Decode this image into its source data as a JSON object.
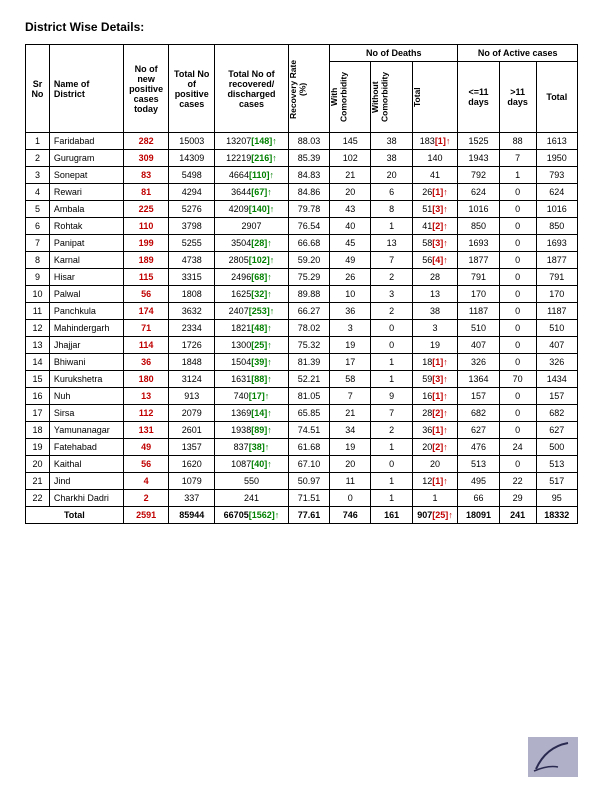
{
  "title": "District Wise Details:",
  "headers": {
    "sr": "Sr No",
    "name": "Name of District",
    "new": "No of new positive cases today",
    "totalpos": "Total No of positive cases",
    "recovered": "Total No of recovered/ discharged cases",
    "recrate": "Recovery Rate (%)",
    "deaths": "No of Deaths",
    "withco": "With Comorbidity",
    "withoutco": "Without Comorbidity",
    "dtotal": "Total",
    "active": "No of Active cases",
    "le11": "<=11 days",
    "gt11": ">11 days",
    "atotal": "Total"
  },
  "rows": [
    {
      "sr": "1",
      "name": "Faridabad",
      "new": "282",
      "totalpos": "15003",
      "rec": "13207",
      "recdelta": "[148]",
      "rate": "88.03",
      "withco": "145",
      "withoutco": "38",
      "dtot": "183",
      "dnote": "[1]",
      "darrow": true,
      "le11": "1525",
      "gt11": "88",
      "atot": "1613"
    },
    {
      "sr": "2",
      "name": "Gurugram",
      "new": "309",
      "totalpos": "14309",
      "rec": "12219",
      "recdelta": "[216]",
      "rate": "85.39",
      "withco": "102",
      "withoutco": "38",
      "dtot": "140",
      "dnote": "",
      "darrow": false,
      "le11": "1943",
      "gt11": "7",
      "atot": "1950"
    },
    {
      "sr": "3",
      "name": "Sonepat",
      "new": "83",
      "totalpos": "5498",
      "rec": "4664",
      "recdelta": "[110]",
      "rate": "84.83",
      "withco": "21",
      "withoutco": "20",
      "dtot": "41",
      "dnote": "",
      "darrow": false,
      "le11": "792",
      "gt11": "1",
      "atot": "793"
    },
    {
      "sr": "4",
      "name": "Rewari",
      "new": "81",
      "totalpos": "4294",
      "rec": "3644",
      "recdelta": "[67]",
      "rate": "84.86",
      "withco": "20",
      "withoutco": "6",
      "dtot": "26",
      "dnote": "[1]",
      "darrow": true,
      "le11": "624",
      "gt11": "0",
      "atot": "624"
    },
    {
      "sr": "5",
      "name": "Ambala",
      "new": "225",
      "totalpos": "5276",
      "rec": "4209",
      "recdelta": "[140]",
      "rate": "79.78",
      "withco": "43",
      "withoutco": "8",
      "dtot": "51",
      "dnote": "[3]",
      "darrow": true,
      "le11": "1016",
      "gt11": "0",
      "atot": "1016"
    },
    {
      "sr": "6",
      "name": "Rohtak",
      "new": "110",
      "totalpos": "3798",
      "rec": "2907",
      "recdelta": "",
      "rate": "76.54",
      "withco": "40",
      "withoutco": "1",
      "dtot": "41",
      "dnote": "[2]",
      "darrow": true,
      "le11": "850",
      "gt11": "0",
      "atot": "850"
    },
    {
      "sr": "7",
      "name": "Panipat",
      "new": "199",
      "totalpos": "5255",
      "rec": "3504",
      "recdelta": "[28]",
      "rate": "66.68",
      "withco": "45",
      "withoutco": "13",
      "dtot": "58",
      "dnote": "[3]",
      "darrow": true,
      "le11": "1693",
      "gt11": "0",
      "atot": "1693"
    },
    {
      "sr": "8",
      "name": "Karnal",
      "new": "189",
      "totalpos": "4738",
      "rec": "2805",
      "recdelta": "[102]",
      "rate": "59.20",
      "withco": "49",
      "withoutco": "7",
      "dtot": "56",
      "dnote": "[4]",
      "darrow": true,
      "le11": "1877",
      "gt11": "0",
      "atot": "1877"
    },
    {
      "sr": "9",
      "name": "Hisar",
      "new": "115",
      "totalpos": "3315",
      "rec": "2496",
      "recdelta": "[68]",
      "rate": "75.29",
      "withco": "26",
      "withoutco": "2",
      "dtot": "28",
      "dnote": "",
      "darrow": false,
      "le11": "791",
      "gt11": "0",
      "atot": "791"
    },
    {
      "sr": "10",
      "name": "Palwal",
      "new": "56",
      "totalpos": "1808",
      "rec": "1625",
      "recdelta": "[32]",
      "rate": "89.88",
      "withco": "10",
      "withoutco": "3",
      "dtot": "13",
      "dnote": "",
      "darrow": false,
      "le11": "170",
      "gt11": "0",
      "atot": "170"
    },
    {
      "sr": "11",
      "name": "Panchkula",
      "new": "174",
      "totalpos": "3632",
      "rec": "2407",
      "recdelta": "[253]",
      "rate": "66.27",
      "withco": "36",
      "withoutco": "2",
      "dtot": "38",
      "dnote": "",
      "darrow": false,
      "le11": "1187",
      "gt11": "0",
      "atot": "1187"
    },
    {
      "sr": "12",
      "name": "Mahindergarh",
      "new": "71",
      "totalpos": "2334",
      "rec": "1821",
      "recdelta": "[48]",
      "rate": "78.02",
      "withco": "3",
      "withoutco": "0",
      "dtot": "3",
      "dnote": "",
      "darrow": false,
      "le11": "510",
      "gt11": "0",
      "atot": "510"
    },
    {
      "sr": "13",
      "name": "Jhajjar",
      "new": "114",
      "totalpos": "1726",
      "rec": "1300",
      "recdelta": "[25]",
      "rate": "75.32",
      "withco": "19",
      "withoutco": "0",
      "dtot": "19",
      "dnote": "",
      "darrow": false,
      "le11": "407",
      "gt11": "0",
      "atot": "407"
    },
    {
      "sr": "14",
      "name": "Bhiwani",
      "new": "36",
      "totalpos": "1848",
      "rec": "1504",
      "recdelta": "[39]",
      "rate": "81.39",
      "withco": "17",
      "withoutco": "1",
      "dtot": "18",
      "dnote": "[1]",
      "darrow": true,
      "le11": "326",
      "gt11": "0",
      "atot": "326"
    },
    {
      "sr": "15",
      "name": "Kurukshetra",
      "new": "180",
      "totalpos": "3124",
      "rec": "1631",
      "recdelta": "[88]",
      "rate": "52.21",
      "withco": "58",
      "withoutco": "1",
      "dtot": "59",
      "dnote": "[3]",
      "darrow": true,
      "le11": "1364",
      "gt11": "70",
      "atot": "1434"
    },
    {
      "sr": "16",
      "name": "Nuh",
      "new": "13",
      "totalpos": "913",
      "rec": "740",
      "recdelta": "[17]",
      "rate": "81.05",
      "withco": "7",
      "withoutco": "9",
      "dtot": "16",
      "dnote": "[1]",
      "darrow": true,
      "le11": "157",
      "gt11": "0",
      "atot": "157"
    },
    {
      "sr": "17",
      "name": "Sirsa",
      "new": "112",
      "totalpos": "2079",
      "rec": "1369",
      "recdelta": "[14]",
      "rate": "65.85",
      "withco": "21",
      "withoutco": "7",
      "dtot": "28",
      "dnote": "[2]",
      "darrow": true,
      "le11": "682",
      "gt11": "0",
      "atot": "682"
    },
    {
      "sr": "18",
      "name": "Yamunanagar",
      "new": "131",
      "totalpos": "2601",
      "rec": "1938",
      "recdelta": "[89]",
      "rate": "74.51",
      "withco": "34",
      "withoutco": "2",
      "dtot": "36",
      "dnote": "[1]",
      "darrow": true,
      "le11": "627",
      "gt11": "0",
      "atot": "627"
    },
    {
      "sr": "19",
      "name": "Fatehabad",
      "new": "49",
      "totalpos": "1357",
      "rec": "837",
      "recdelta": "[38]",
      "rate": "61.68",
      "withco": "19",
      "withoutco": "1",
      "dtot": "20",
      "dnote": "[2]",
      "darrow": true,
      "le11": "476",
      "gt11": "24",
      "atot": "500"
    },
    {
      "sr": "20",
      "name": "Kaithal",
      "new": "56",
      "totalpos": "1620",
      "rec": "1087",
      "recdelta": "[40]",
      "rate": "67.10",
      "withco": "20",
      "withoutco": "0",
      "dtot": "20",
      "dnote": "",
      "darrow": false,
      "le11": "513",
      "gt11": "0",
      "atot": "513"
    },
    {
      "sr": "21",
      "name": "Jind",
      "new": "4",
      "totalpos": "1079",
      "rec": "550",
      "recdelta": "",
      "rate": "50.97",
      "withco": "11",
      "withoutco": "1",
      "dtot": "12",
      "dnote": "[1]",
      "darrow": true,
      "le11": "495",
      "gt11": "22",
      "atot": "517"
    },
    {
      "sr": "22",
      "name": "Charkhi Dadri",
      "new": "2",
      "totalpos": "337",
      "rec": "241",
      "recdelta": "",
      "rate": "71.51",
      "withco": "0",
      "withoutco": "1",
      "dtot": "1",
      "dnote": "",
      "darrow": false,
      "le11": "66",
      "gt11": "29",
      "atot": "95"
    }
  ],
  "total": {
    "label": "Total",
    "new": "2591",
    "totalpos": "85944",
    "rec": "66705",
    "recdelta": "[1562]",
    "rate": "77.61",
    "withco": "746",
    "withoutco": "161",
    "dtot": "907",
    "dnote": "[25]",
    "darrow": true,
    "le11": "18091",
    "gt11": "241",
    "atot": "18332"
  }
}
